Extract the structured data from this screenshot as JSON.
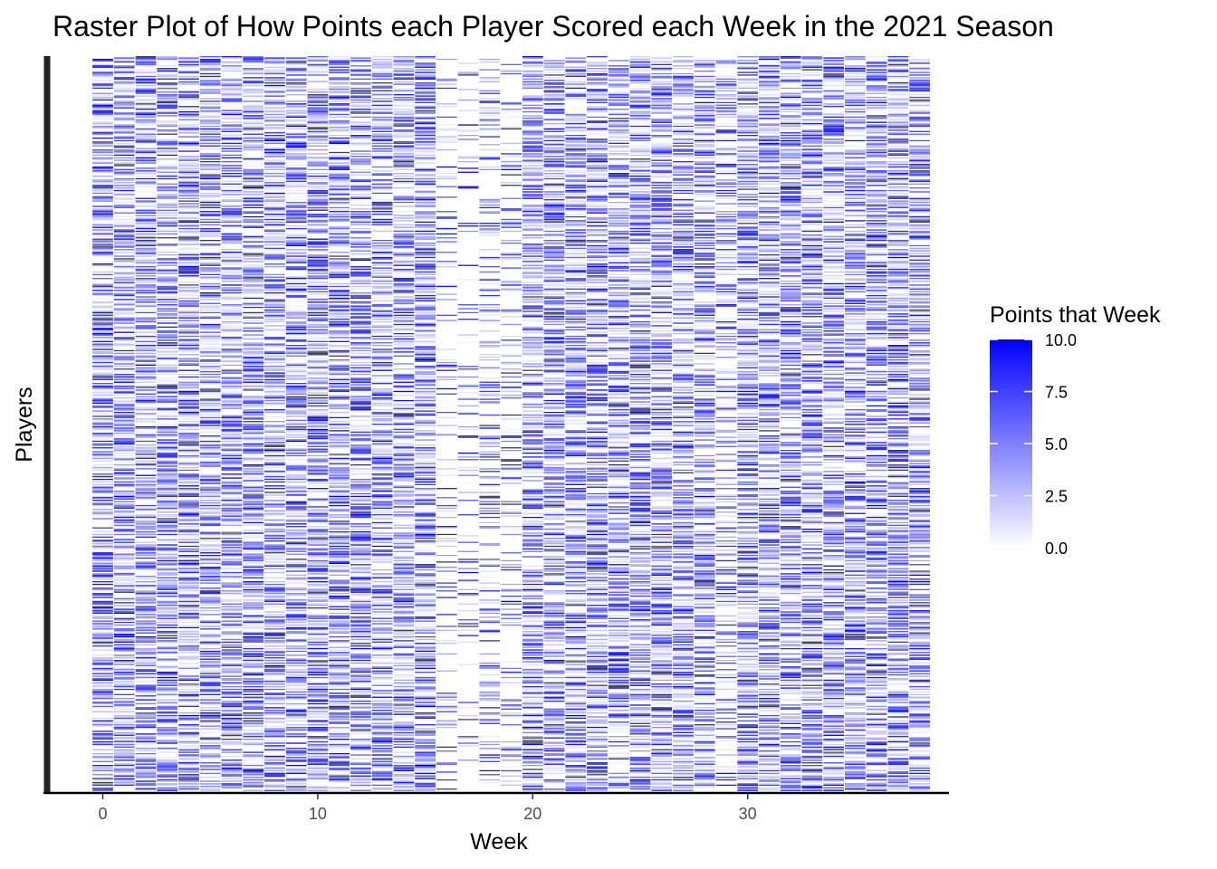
{
  "chart_data": {
    "type": "heatmap",
    "title": "Raster Plot of How Points each Player Scored each Week in the 2021 Season",
    "xlabel": "Week",
    "ylabel": "Players",
    "x_ticks": [
      0,
      10,
      20,
      30
    ],
    "x_tick_labels": [
      "0",
      "10",
      "20",
      "30"
    ],
    "xlim": [
      -2.8,
      39.5
    ],
    "weeks": [
      0,
      38
    ],
    "grid": false,
    "legend": {
      "title": "Points that Week",
      "position": "right",
      "min": 0,
      "max": 10,
      "breaks": [
        0,
        2.5,
        5,
        7.5,
        10
      ],
      "break_labels": [
        "0.0",
        "2.5",
        "5.0",
        "7.5",
        "10.0"
      ],
      "low_color": "#ffffff",
      "high_color": "#0000ff",
      "na_color": "#4d4d4d"
    },
    "players_count": 560,
    "note_values": "cell fill encodes points (0–10); darker grey cells are values above the scale"
  }
}
